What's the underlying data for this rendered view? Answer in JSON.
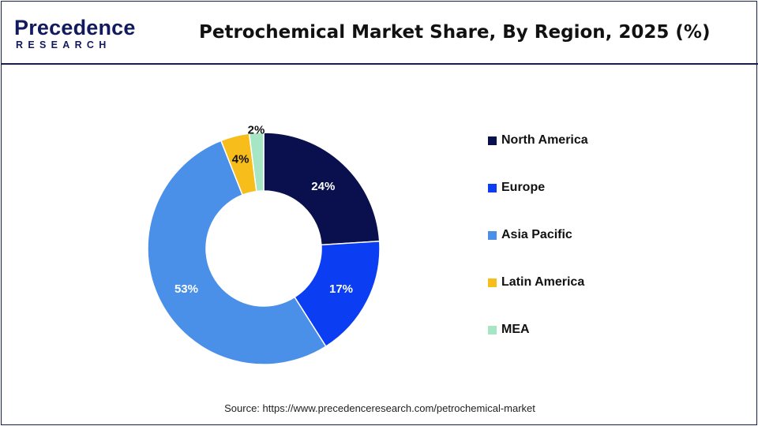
{
  "header": {
    "logo_main": "Precedence",
    "logo_sub": "RESEARCH",
    "title": "Petrochemical Market Share, By Region, 2025 (%)"
  },
  "chart_data": {
    "type": "pie",
    "variant": "donut",
    "title": "Petrochemical Market Share, By Region, 2025 (%)",
    "categories": [
      "North America",
      "Europe",
      "Asia Pacific",
      "Latin America",
      "MEA"
    ],
    "values": [
      24,
      17,
      53,
      4,
      2
    ],
    "labels": [
      "24%",
      "17%",
      "53%",
      "4%",
      "2%"
    ],
    "colors": [
      "#0a0f4e",
      "#0b3ef2",
      "#4a90e8",
      "#f7bd1a",
      "#a6e6c4"
    ],
    "label_colors": [
      "#ffffff",
      "#ffffff",
      "#ffffff",
      "#111111",
      "#111111"
    ],
    "legend_position": "right"
  },
  "source": "Source: https://www.precedenceresearch.com/petrochemical-market"
}
